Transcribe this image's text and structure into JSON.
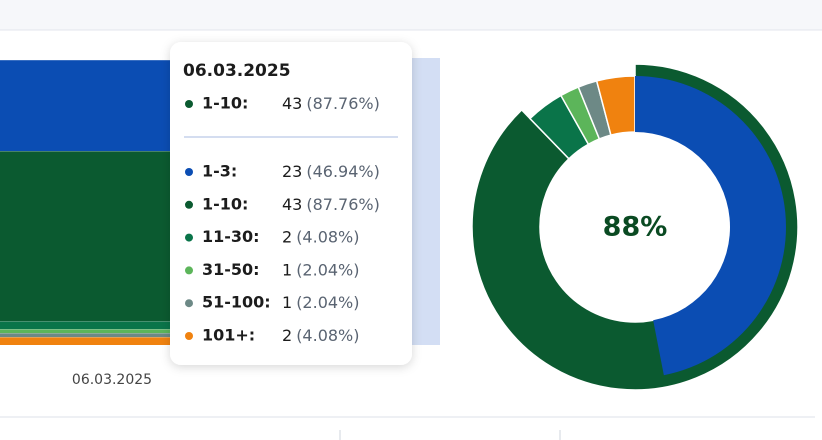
{
  "chart_data": [
    {
      "type": "area",
      "stacked": true,
      "x": [
        "06.03.2025"
      ],
      "series": [
        {
          "name": "1-3:",
          "color": "#0b4db3",
          "values": [
            23
          ]
        },
        {
          "name": "1-10:",
          "color": "#0b5a30",
          "values": [
            43
          ]
        },
        {
          "name": "11-30:",
          "color": "#0a7449",
          "values": [
            2
          ]
        },
        {
          "name": "31-50:",
          "color": "#5cb55a",
          "values": [
            1
          ]
        },
        {
          "name": "51-100:",
          "color": "#6d8986",
          "values": [
            1
          ]
        },
        {
          "name": "101+:",
          "color": "#f0820f",
          "values": [
            2
          ]
        }
      ]
    },
    {
      "type": "pie",
      "donut": true,
      "center_label": "88%"
    }
  ],
  "tooltip": {
    "highlight": 1,
    "percent_labels": [
      "(46.94%)",
      "(87.76%)",
      "(4.08%)",
      "(2.04%)",
      "(2.04%)",
      "(4.08%)"
    ]
  }
}
